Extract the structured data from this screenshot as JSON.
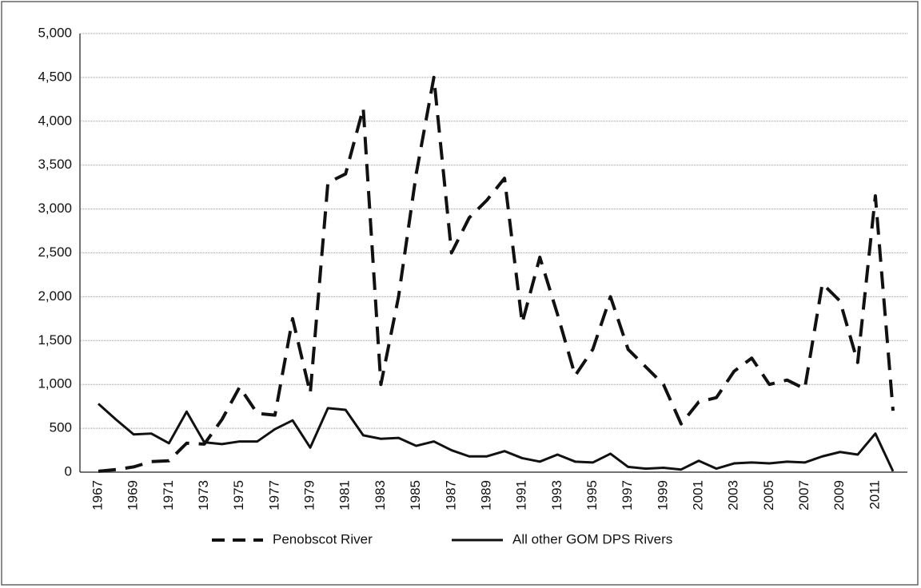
{
  "chart_data": {
    "type": "line",
    "categories": [
      "1967",
      null,
      "1969",
      null,
      "1971",
      null,
      "1973",
      null,
      "1975",
      null,
      "1977",
      null,
      "1979",
      null,
      "1981",
      null,
      "1983",
      null,
      "1985",
      null,
      "1987",
      null,
      "1989",
      null,
      "1991",
      null,
      "1993",
      null,
      "1995",
      null,
      "1997",
      null,
      "1999",
      null,
      "2001",
      null,
      "2003",
      null,
      "2005",
      null,
      "2007",
      null,
      "2009",
      null,
      "2011",
      null
    ],
    "series": [
      {
        "name": "Penobscot River",
        "color": "#111111",
        "dash": true,
        "values": [
          10,
          30,
          60,
          120,
          130,
          330,
          320,
          600,
          970,
          670,
          650,
          1750,
          900,
          3300,
          3400,
          4150,
          1000,
          2000,
          3400,
          4500,
          2500,
          2900,
          3100,
          3350,
          1700,
          2450,
          1800,
          1100,
          1400,
          2000,
          1400,
          1200,
          1000,
          550,
          800,
          850,
          1150,
          1300,
          1000,
          1050,
          950,
          2150,
          1950,
          1250,
          3150,
          700
        ]
      },
      {
        "name": "All other GOM DPS Rivers",
        "color": "#111111",
        "dash": false,
        "values": [
          780,
          600,
          430,
          440,
          330,
          690,
          340,
          320,
          350,
          350,
          490,
          590,
          280,
          730,
          710,
          420,
          380,
          390,
          300,
          350,
          250,
          180,
          180,
          240,
          160,
          120,
          200,
          120,
          110,
          210,
          60,
          40,
          50,
          30,
          130,
          40,
          100,
          110,
          100,
          120,
          110,
          180,
          230,
          200,
          440,
          10
        ]
      }
    ],
    "ylim": [
      0,
      5000
    ],
    "yticks": [
      0,
      500,
      {
        "value": 1000,
        "label": "1,000"
      },
      {
        "value": 1500,
        "label": "1,500"
      },
      {
        "value": 2000,
        "label": "2,000"
      },
      {
        "value": 2500,
        "label": "2,500"
      },
      {
        "value": 3000,
        "label": "3,000"
      },
      {
        "value": 3500,
        "label": "3,500"
      },
      {
        "value": 4000,
        "label": "4,000"
      },
      {
        "value": 4500,
        "label": "4,500"
      },
      {
        "value": 5000,
        "label": "5,000"
      }
    ],
    "grid": true,
    "legend": "bottom"
  }
}
